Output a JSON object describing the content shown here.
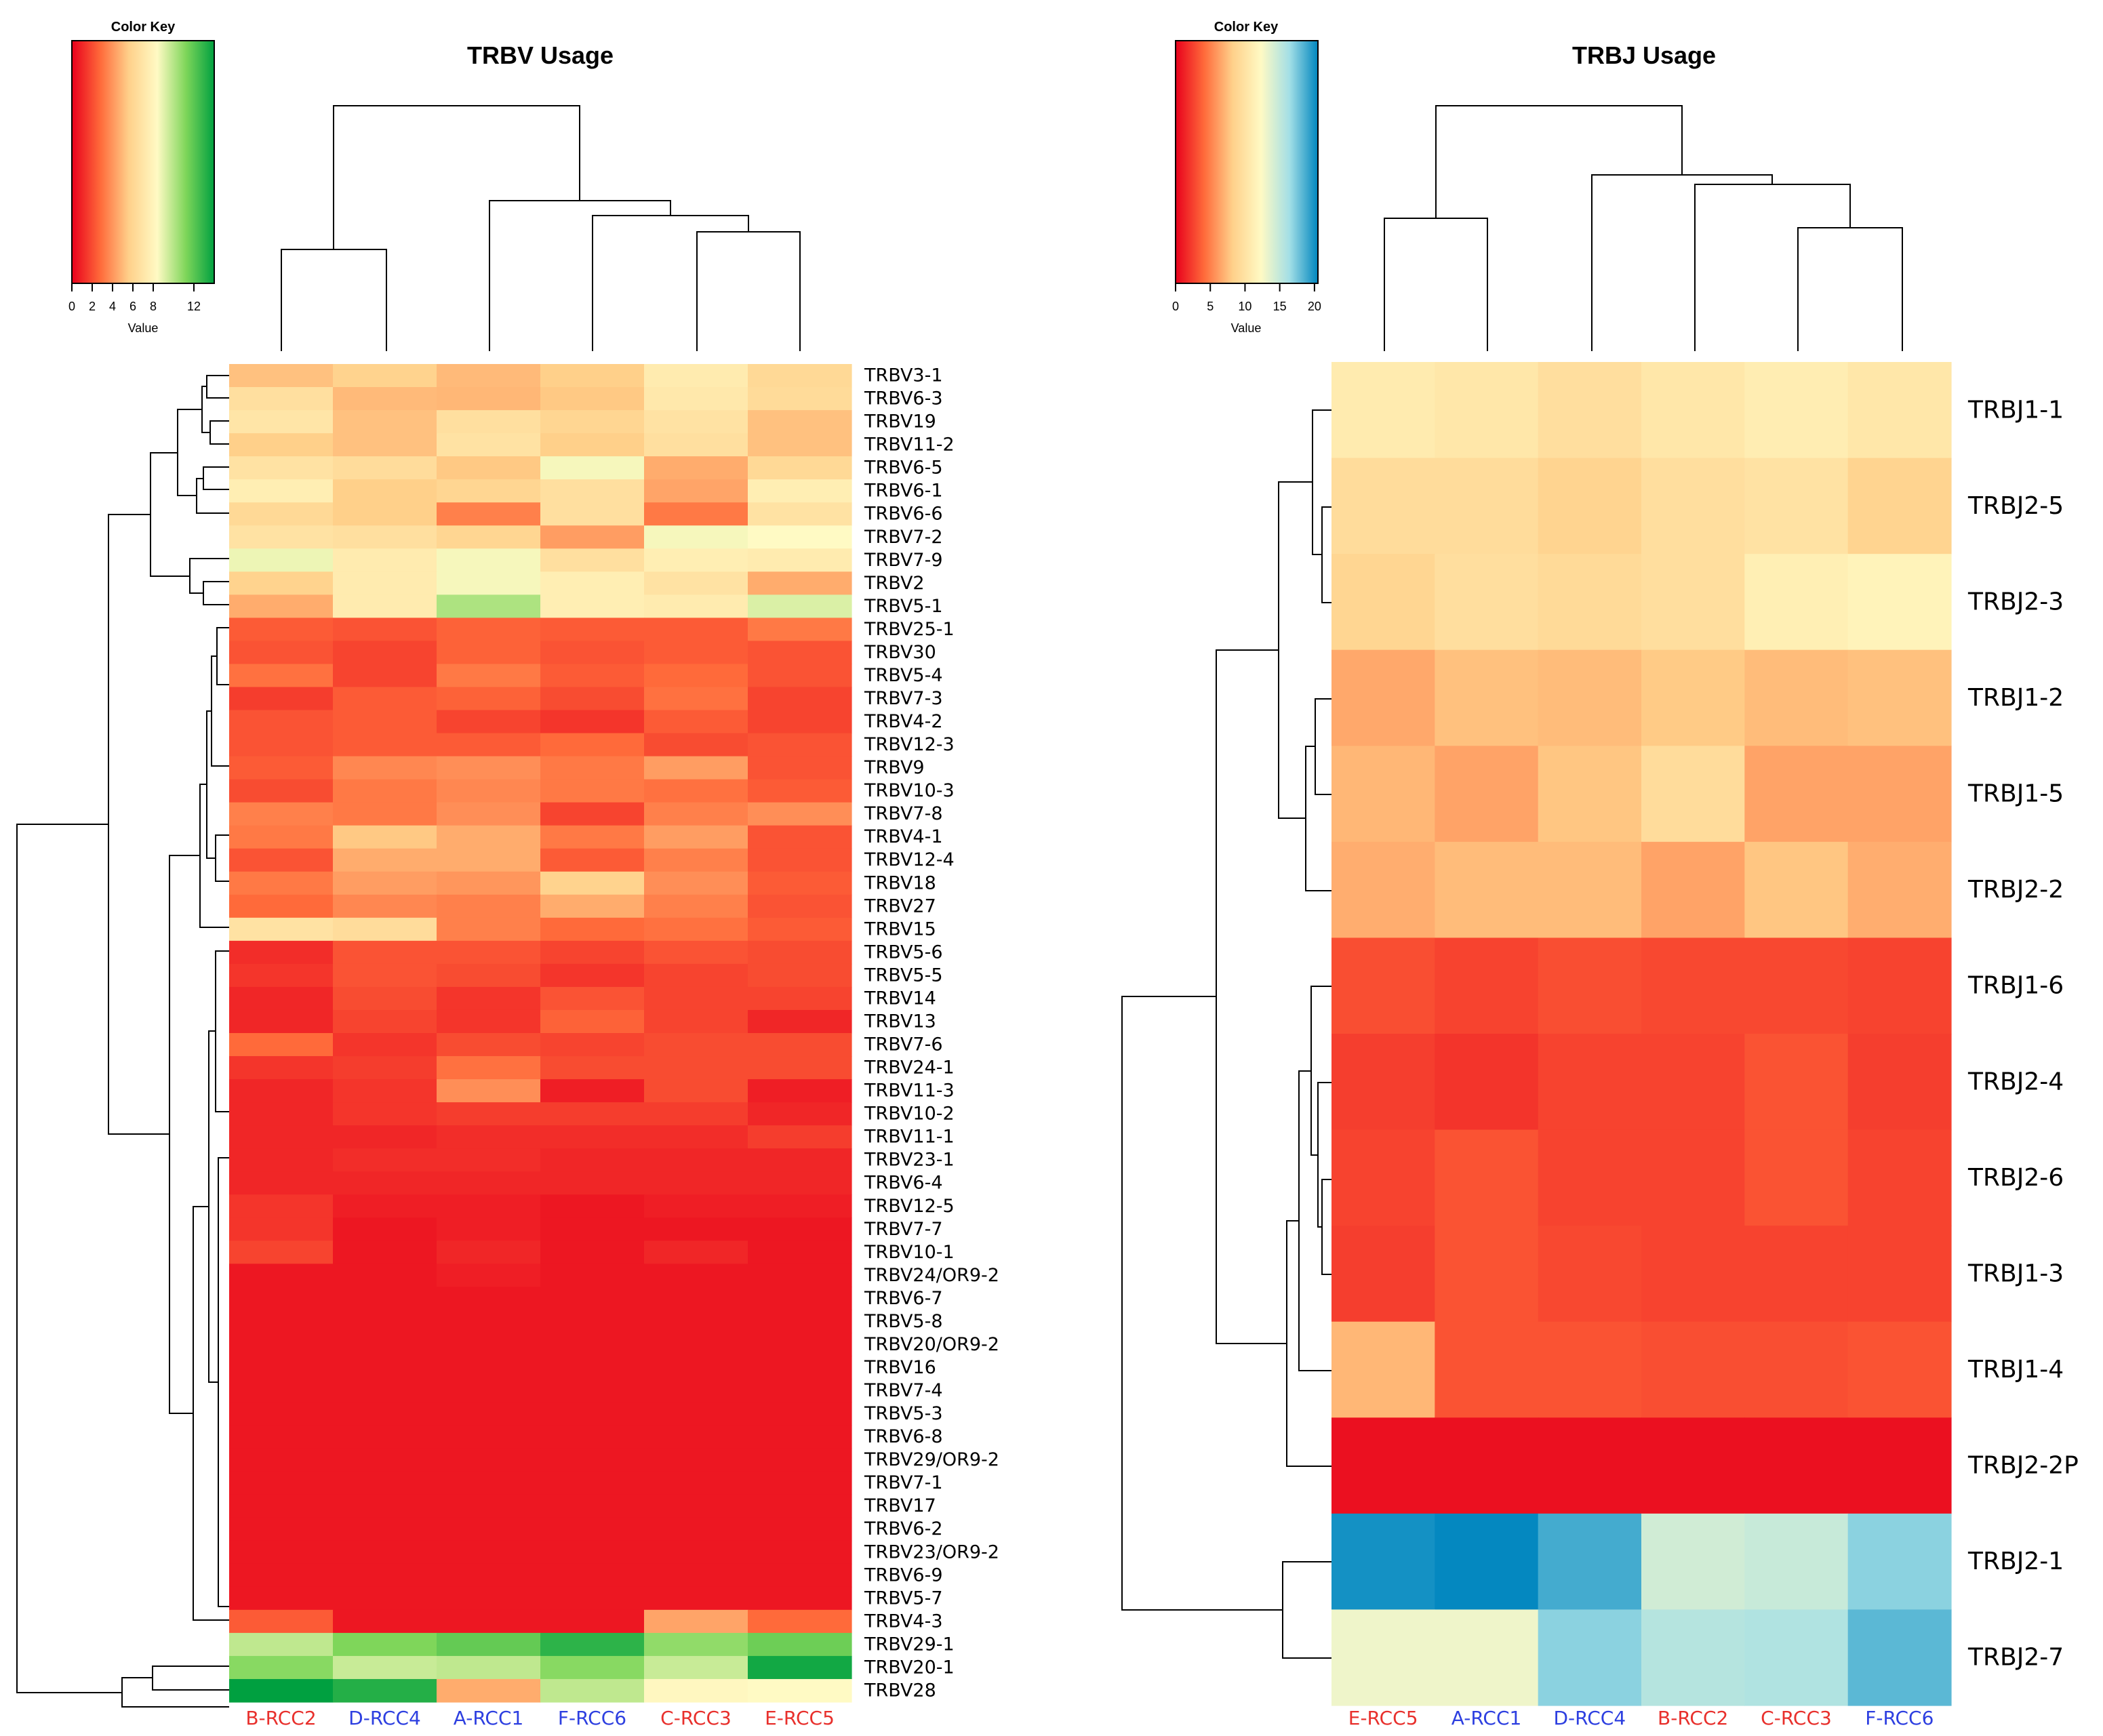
{
  "chart_data": [
    {
      "type": "heatmap",
      "title": "TRBV Usage",
      "color_key": {
        "title": "Color Key",
        "xlabel": "Value",
        "ticks": [
          "0",
          "2",
          "4",
          "6",
          "8",
          "12"
        ],
        "tick_values": [
          0,
          2,
          4,
          6,
          8,
          12
        ],
        "range": [
          0,
          14
        ],
        "colors": [
          "#e8001c",
          "#ff6a3a",
          "#ffd08a",
          "#fffac4",
          "#7fd65a",
          "#00a040"
        ]
      },
      "column_colors": [
        "#e8302c",
        "#2d3fe0",
        "#2d3fe0",
        "#2d3fe0",
        "#e8302c",
        "#e8302c"
      ],
      "columns": [
        "B-RCC2",
        "D-RCC4",
        "A-RCC1",
        "F-RCC6",
        "C-RCC3",
        "E-RCC5"
      ],
      "rows": [
        "TRBV3-1",
        "TRBV6-3",
        "TRBV19",
        "TRBV11-2",
        "TRBV6-5",
        "TRBV6-1",
        "TRBV6-6",
        "TRBV7-2",
        "TRBV7-9",
        "TRBV2",
        "TRBV5-1",
        "TRBV25-1",
        "TRBV30",
        "TRBV5-4",
        "TRBV7-3",
        "TRBV4-2",
        "TRBV12-3",
        "TRBV9",
        "TRBV10-3",
        "TRBV7-8",
        "TRBV4-1",
        "TRBV12-4",
        "TRBV18",
        "TRBV27",
        "TRBV15",
        "TRBV5-6",
        "TRBV5-5",
        "TRBV14",
        "TRBV13",
        "TRBV7-6",
        "TRBV24-1",
        "TRBV11-3",
        "TRBV10-2",
        "TRBV11-1",
        "TRBV23-1",
        "TRBV6-4",
        "TRBV12-5",
        "TRBV7-7",
        "TRBV10-1",
        "TRBV24/OR9-2",
        "TRBV6-7",
        "TRBV5-8",
        "TRBV20/OR9-2",
        "TRBV16",
        "TRBV7-4",
        "TRBV5-3",
        "TRBV6-8",
        "TRBV29/OR9-2",
        "TRBV7-1",
        "TRBV17",
        "TRBV6-2",
        "TRBV23/OR9-2",
        "TRBV6-9",
        "TRBV5-7",
        "TRBV4-3",
        "TRBV29-1",
        "TRBV20-1",
        "TRBV28"
      ],
      "values": [
        [
          5.2,
          5.8,
          5.0,
          5.6,
          7.4,
          6.2
        ],
        [
          6.6,
          5.0,
          4.9,
          5.4,
          7.2,
          6.3
        ],
        [
          7.0,
          5.2,
          6.6,
          6.0,
          6.8,
          5.2
        ],
        [
          5.6,
          5.2,
          6.8,
          5.6,
          6.6,
          5.2
        ],
        [
          6.8,
          6.4,
          5.4,
          8.6,
          4.6,
          6.2
        ],
        [
          7.6,
          5.6,
          6.0,
          6.6,
          4.4,
          7.6
        ],
        [
          6.2,
          5.6,
          3.4,
          6.6,
          3.2,
          6.8
        ],
        [
          6.8,
          6.6,
          6.0,
          4.2,
          8.6,
          8.4
        ],
        [
          8.8,
          7.4,
          8.6,
          6.6,
          7.6,
          7.4
        ],
        [
          5.8,
          7.4,
          8.6,
          7.6,
          6.8,
          4.6
        ],
        [
          4.6,
          7.4,
          10.2,
          7.6,
          7.4,
          9.2
        ],
        [
          2.4,
          2.2,
          2.6,
          2.4,
          2.4,
          3.2
        ],
        [
          2.2,
          1.8,
          2.6,
          2.2,
          2.4,
          2.2
        ],
        [
          3.0,
          1.8,
          3.2,
          2.4,
          2.8,
          2.2
        ],
        [
          1.6,
          2.4,
          2.6,
          2.0,
          3.0,
          1.8
        ],
        [
          2.2,
          2.4,
          1.8,
          1.4,
          2.4,
          1.8
        ],
        [
          2.2,
          2.4,
          2.4,
          2.8,
          2.0,
          2.2
        ],
        [
          2.4,
          3.6,
          3.8,
          3.2,
          4.2,
          2.2
        ],
        [
          2.0,
          3.2,
          3.6,
          3.2,
          3.0,
          2.4
        ],
        [
          3.4,
          3.2,
          3.8,
          1.8,
          3.4,
          3.8
        ],
        [
          3.2,
          5.4,
          4.6,
          3.2,
          4.2,
          2.2
        ],
        [
          2.2,
          4.6,
          4.6,
          2.4,
          3.4,
          2.2
        ],
        [
          3.2,
          4.2,
          4.0,
          5.8,
          3.8,
          2.4
        ],
        [
          2.8,
          3.6,
          3.4,
          4.6,
          3.4,
          2.2
        ],
        [
          6.8,
          6.4,
          3.4,
          2.8,
          3.0,
          2.4
        ],
        [
          1.2,
          2.2,
          2.2,
          1.8,
          2.2,
          2.0
        ],
        [
          1.4,
          2.2,
          2.0,
          1.4,
          1.8,
          2.0
        ],
        [
          1.0,
          2.0,
          1.4,
          2.2,
          1.8,
          1.8
        ],
        [
          1.0,
          1.8,
          1.4,
          2.6,
          1.8,
          1.0
        ],
        [
          2.8,
          1.4,
          2.0,
          1.8,
          2.0,
          2.0
        ],
        [
          1.4,
          1.6,
          3.0,
          2.0,
          2.0,
          2.0
        ],
        [
          1.0,
          1.4,
          3.8,
          0.8,
          2.0,
          0.8
        ],
        [
          1.0,
          1.4,
          1.6,
          1.6,
          1.6,
          1.0
        ],
        [
          1.0,
          1.0,
          1.2,
          1.2,
          1.2,
          1.6
        ],
        [
          1.0,
          1.2,
          1.2,
          1.0,
          1.0,
          1.0
        ],
        [
          1.0,
          1.0,
          1.0,
          1.0,
          1.0,
          1.0
        ],
        [
          1.4,
          0.8,
          0.8,
          0.6,
          0.8,
          0.8
        ],
        [
          1.4,
          0.6,
          0.8,
          0.6,
          0.6,
          0.6
        ],
        [
          1.8,
          0.6,
          1.0,
          0.6,
          1.0,
          0.6
        ],
        [
          0.6,
          0.6,
          0.8,
          0.6,
          0.6,
          0.6
        ],
        [
          0.6,
          0.6,
          0.6,
          0.6,
          0.6,
          0.6
        ],
        [
          0.6,
          0.6,
          0.6,
          0.6,
          0.6,
          0.6
        ],
        [
          0.6,
          0.6,
          0.6,
          0.6,
          0.6,
          0.6
        ],
        [
          0.6,
          0.6,
          0.6,
          0.6,
          0.6,
          0.6
        ],
        [
          0.6,
          0.6,
          0.6,
          0.6,
          0.6,
          0.6
        ],
        [
          0.6,
          0.6,
          0.6,
          0.6,
          0.6,
          0.6
        ],
        [
          0.6,
          0.6,
          0.6,
          0.6,
          0.6,
          0.6
        ],
        [
          0.6,
          0.6,
          0.6,
          0.6,
          0.6,
          0.6
        ],
        [
          0.6,
          0.6,
          0.6,
          0.6,
          0.6,
          0.6
        ],
        [
          0.6,
          0.6,
          0.6,
          0.6,
          0.6,
          0.6
        ],
        [
          0.6,
          0.6,
          0.6,
          0.6,
          0.6,
          0.6
        ],
        [
          0.6,
          0.6,
          0.6,
          0.6,
          0.6,
          0.6
        ],
        [
          0.6,
          0.6,
          0.6,
          0.6,
          0.6,
          0.6
        ],
        [
          0.6,
          0.6,
          0.6,
          0.6,
          0.6,
          0.6
        ],
        [
          2.4,
          0.6,
          0.6,
          0.6,
          4.4,
          2.8
        ],
        [
          9.8,
          11.2,
          11.8,
          13.0,
          10.8,
          11.6
        ],
        [
          11.0,
          9.6,
          9.8,
          11.0,
          9.6,
          13.6
        ],
        [
          14.0,
          13.2,
          4.6,
          9.8,
          8.2,
          8.4
        ]
      ],
      "dendrogram_rows": "left",
      "dendrogram_columns": "top"
    },
    {
      "type": "heatmap",
      "title": "TRBJ Usage",
      "color_key": {
        "title": "Color Key",
        "xlabel": "Value",
        "ticks": [
          "0",
          "5",
          "10",
          "15",
          "20"
        ],
        "tick_values": [
          0,
          5,
          10,
          15,
          20
        ],
        "range": [
          0,
          20.5
        ],
        "colors": [
          "#e8001c",
          "#ff6a3a",
          "#ffd08a",
          "#fffac4",
          "#a3dfe6",
          "#0086bf"
        ]
      },
      "column_colors": [
        "#e8302c",
        "#2d3fe0",
        "#2d3fe0",
        "#e8302c",
        "#e8302c",
        "#2d3fe0"
      ],
      "columns": [
        "E-RCC5",
        "A-RCC1",
        "D-RCC4",
        "B-RCC2",
        "C-RCC3",
        "F-RCC6"
      ],
      "rows": [
        "TRBJ1-1",
        "TRBJ2-5",
        "TRBJ2-3",
        "TRBJ1-2",
        "TRBJ1-5",
        "TRBJ2-2",
        "TRBJ1-6",
        "TRBJ2-4",
        "TRBJ2-6",
        "TRBJ1-3",
        "TRBJ1-4",
        "TRBJ2-2P",
        "TRBJ2-1",
        "TRBJ2-7"
      ],
      "values": [
        [
          10.8,
          10.4,
          9.6,
          10.4,
          11.0,
          10.4
        ],
        [
          9.4,
          9.4,
          8.6,
          9.6,
          10.0,
          8.6
        ],
        [
          8.8,
          9.6,
          9.2,
          9.6,
          11.2,
          11.6
        ],
        [
          6.6,
          7.6,
          7.4,
          8.0,
          7.4,
          7.6
        ],
        [
          7.2,
          6.4,
          7.8,
          9.4,
          6.4,
          6.4
        ],
        [
          6.8,
          7.4,
          7.4,
          6.4,
          7.8,
          6.8
        ],
        [
          3.0,
          2.6,
          3.0,
          2.8,
          2.8,
          2.6
        ],
        [
          2.4,
          2.0,
          2.6,
          2.6,
          3.2,
          2.4
        ],
        [
          2.6,
          3.2,
          2.6,
          2.6,
          3.2,
          2.6
        ],
        [
          2.4,
          3.2,
          2.8,
          2.6,
          2.6,
          2.6
        ],
        [
          7.2,
          3.2,
          3.2,
          3.0,
          3.0,
          3.2
        ],
        [
          0.6,
          0.6,
          0.6,
          0.6,
          0.6,
          0.6
        ],
        [
          20.0,
          20.4,
          18.8,
          14.4,
          14.8,
          17.0
        ],
        [
          13.0,
          13.0,
          17.0,
          15.6,
          15.8,
          18.2
        ]
      ],
      "dendrogram_rows": "left",
      "dendrogram_columns": "top"
    }
  ]
}
